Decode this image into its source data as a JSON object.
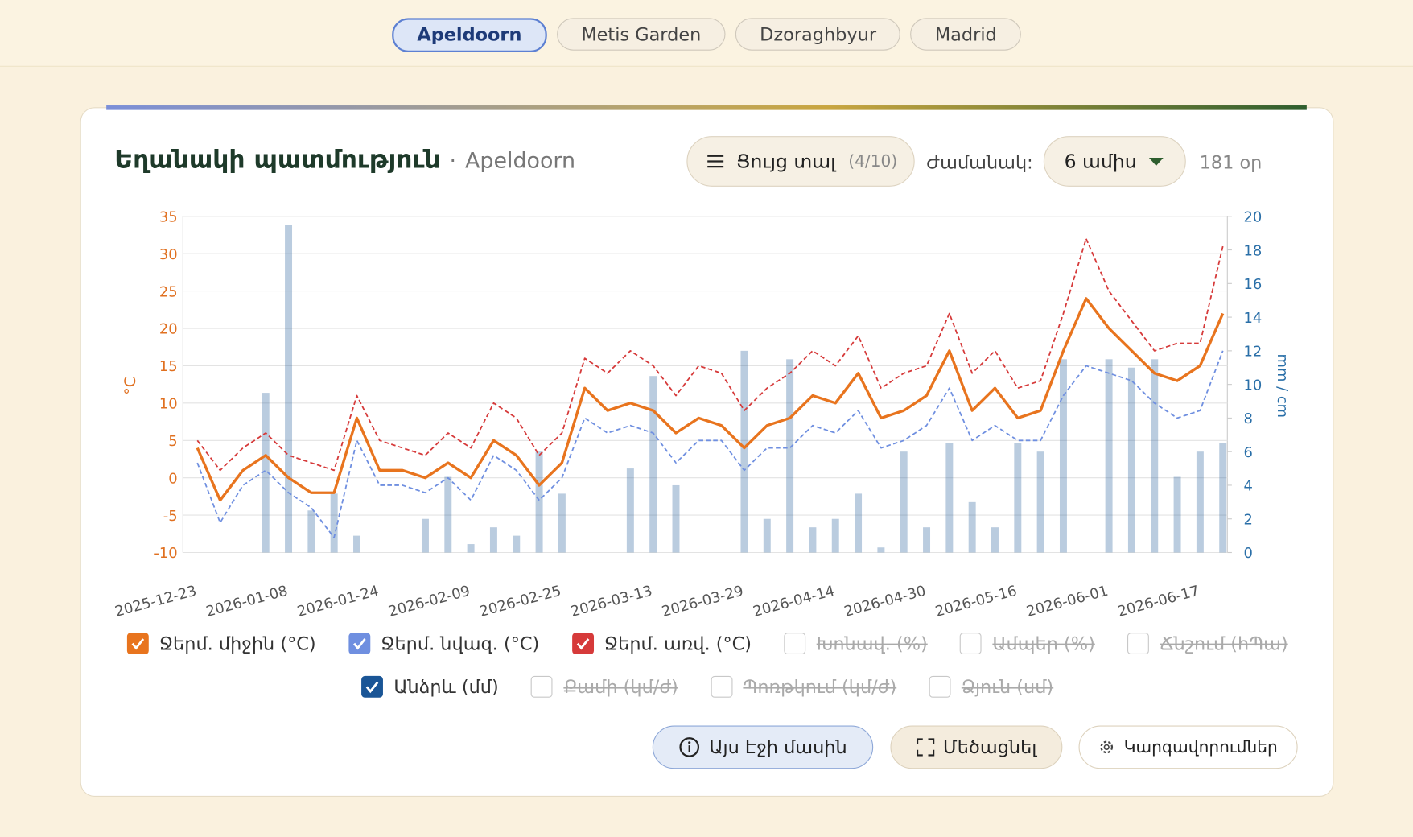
{
  "tabs": [
    "Apeldoorn",
    "Metis Garden",
    "Dzoraghbyur",
    "Madrid"
  ],
  "card": {
    "title": "Եղանակի պատմություն",
    "separator": "·",
    "location": "Apeldoorn",
    "show_button": "Ցույց տալ",
    "show_count": "(4/10)",
    "period_label": "Ժամանակ:",
    "period_value": "6 ամիս",
    "days": "181 օր"
  },
  "chart_data": {
    "type": "combo",
    "ylabel": "°C",
    "y2label": "mm / cm",
    "x": [
      "2025-12-23",
      "2025-12-27",
      "2025-12-31",
      "2026-01-04",
      "2026-01-08",
      "2026-01-12",
      "2026-01-16",
      "2026-01-20",
      "2026-01-24",
      "2026-01-28",
      "2026-02-01",
      "2026-02-05",
      "2026-02-09",
      "2026-02-13",
      "2026-02-17",
      "2026-02-21",
      "2026-02-25",
      "2026-03-01",
      "2026-03-05",
      "2026-03-09",
      "2026-03-13",
      "2026-03-17",
      "2026-03-21",
      "2026-03-25",
      "2026-03-29",
      "2026-04-02",
      "2026-04-06",
      "2026-04-10",
      "2026-04-14",
      "2026-04-18",
      "2026-04-22",
      "2026-04-26",
      "2026-04-30",
      "2026-05-04",
      "2026-05-08",
      "2026-05-12",
      "2026-05-16",
      "2026-05-20",
      "2026-05-24",
      "2026-05-28",
      "2026-06-01",
      "2026-06-05",
      "2026-06-09",
      "2026-06-13",
      "2026-06-17",
      "2026-06-21"
    ],
    "xlim": [
      "2025-12-23",
      "2026-06-21"
    ],
    "xticks": [
      "2025-12-23",
      "2026-01-08",
      "2026-01-24",
      "2026-02-09",
      "2026-02-25",
      "2026-03-13",
      "2026-03-29",
      "2026-04-14",
      "2026-04-30",
      "2026-05-16",
      "2026-06-01",
      "2026-06-17"
    ],
    "ylim": [
      -10,
      35
    ],
    "yticks": [
      -10,
      -5,
      0,
      5,
      10,
      15,
      20,
      25,
      30,
      35
    ],
    "y2lim": [
      0,
      20
    ],
    "y2ticks": [
      0,
      2,
      4,
      6,
      8,
      10,
      12,
      14,
      16,
      18,
      20
    ],
    "grid": true,
    "series": [
      {
        "name": "Ջերմ. միջին (°C)",
        "color": "#e8741e",
        "style": "solid",
        "values": [
          4,
          -3,
          1,
          3,
          0,
          -2,
          -2,
          8,
          1,
          1,
          0,
          2,
          0,
          5,
          3,
          -1,
          2,
          12,
          9,
          10,
          9,
          6,
          8,
          7,
          4,
          7,
          8,
          11,
          10,
          14,
          8,
          9,
          11,
          17,
          9,
          12,
          8,
          9,
          17,
          24,
          20,
          17,
          14,
          13,
          15,
          22
        ]
      },
      {
        "name": "Ջերմ. նվազ. (°C)",
        "color": "#6f8fe0",
        "style": "dashed",
        "values": [
          2,
          -6,
          -1,
          1,
          -2,
          -4,
          -8,
          5,
          -1,
          -1,
          -2,
          0,
          -3,
          3,
          1,
          -3,
          0,
          8,
          6,
          7,
          6,
          2,
          5,
          5,
          1,
          4,
          4,
          7,
          6,
          9,
          4,
          5,
          7,
          12,
          5,
          7,
          5,
          5,
          11,
          15,
          14,
          13,
          10,
          8,
          9,
          17
        ]
      },
      {
        "name": "Ջերմ. առվ. (°C)",
        "color": "#d63a3a",
        "style": "dashed",
        "values": [
          5,
          1,
          4,
          6,
          3,
          2,
          1,
          11,
          5,
          4,
          3,
          6,
          4,
          10,
          8,
          3,
          6,
          16,
          14,
          17,
          15,
          11,
          15,
          14,
          9,
          12,
          14,
          17,
          15,
          19,
          12,
          14,
          15,
          22,
          14,
          17,
          12,
          13,
          22,
          32,
          25,
          21,
          17,
          18,
          18,
          31
        ]
      },
      {
        "name": "Անձրև (մմ)",
        "color": "#1a5596",
        "style": "bar",
        "axis": "y2",
        "values": [
          0,
          0,
          0,
          9.5,
          19.5,
          2.5,
          3.5,
          1,
          0,
          0,
          2,
          4.5,
          0.5,
          1.5,
          1,
          6,
          3.5,
          0,
          0,
          5,
          10.5,
          4,
          0,
          0,
          12,
          2,
          11.5,
          1.5,
          2,
          3.5,
          0.3,
          6,
          1.5,
          6.5,
          3,
          1.5,
          6.5,
          6,
          11.5,
          0,
          11.5,
          11,
          11.5,
          4.5,
          6,
          6.5
        ]
      }
    ]
  },
  "legend_inactive": [
    "Խոնավ. (%)",
    "Ամպեր (%)",
    "Ճնշում (հՊա)",
    "Քամի (կմ/ժ)",
    "Պոռթկում (կմ/ժ)",
    "Ձյուն (սմ)"
  ],
  "buttons": [
    "Այս Էջի մասին",
    "Մեծացնել",
    "Կարգավորումներ"
  ]
}
